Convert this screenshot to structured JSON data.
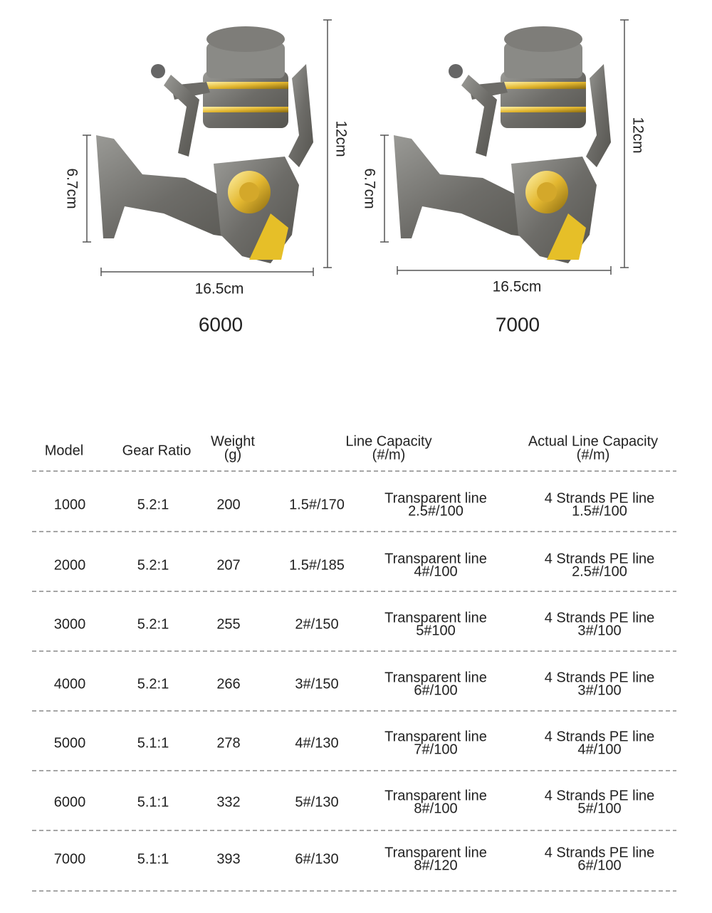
{
  "products": [
    {
      "handle": "6.7cm",
      "height": "12cm",
      "width": "16.5cm",
      "model": "6000"
    },
    {
      "handle": "6.7cm",
      "height": "12cm",
      "width": "16.5cm",
      "model": "7000"
    }
  ],
  "table": {
    "headers": [
      [
        "Model"
      ],
      [
        "Gear Ratio"
      ],
      [
        "Weight",
        "(g)"
      ],
      [
        "Line Capacity",
        "(#/m)"
      ],
      [
        "Actual Line Capacity",
        "(#/m)"
      ]
    ],
    "rows": [
      [
        "1000",
        "5.2:1",
        "200",
        "1.5#/170",
        [
          "Transparent line",
          "2.5#/100"
        ],
        [
          "4 Strands PE line",
          "1.5#/100"
        ]
      ],
      [
        "2000",
        "5.2:1",
        "207",
        "1.5#/185",
        [
          "Transparent line",
          "4#/100"
        ],
        [
          "4 Strands PE line",
          "2.5#/100"
        ]
      ],
      [
        "3000",
        "5.2:1",
        "255",
        "2#/150",
        [
          "Transparent line",
          "5#100"
        ],
        [
          "4 Strands PE line",
          "3#/100"
        ]
      ],
      [
        "4000",
        "5.2:1",
        "266",
        "3#/150",
        [
          "Transparent line",
          "6#/100"
        ],
        [
          "4 Strands PE line",
          "3#/100"
        ]
      ],
      [
        "5000",
        "5.1:1",
        "278",
        "4#/130",
        [
          "Transparent line",
          "7#/100"
        ],
        [
          "4 Strands PE line",
          "4#/100"
        ]
      ],
      [
        "6000",
        "5.1:1",
        "332",
        "5#/130",
        [
          "Transparent line",
          "8#/100"
        ],
        [
          "4 Strands PE line",
          "5#/100"
        ]
      ],
      [
        "7000",
        "5.1:1",
        "393",
        "6#/130",
        [
          "Transparent line",
          "8#/120"
        ],
        [
          "4 Strands PE line",
          "6#/100"
        ]
      ]
    ]
  }
}
